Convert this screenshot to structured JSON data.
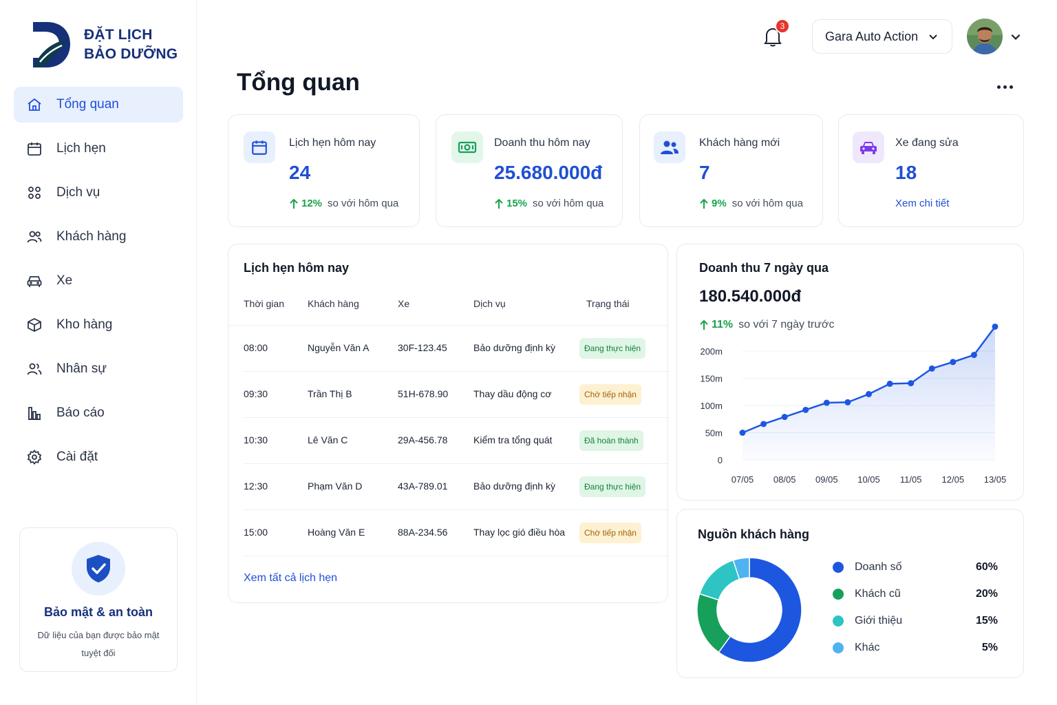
{
  "brand": {
    "line1": "ĐẶT LỊCH",
    "line2": "BẢO DƯỠNG"
  },
  "sidebar": {
    "items": [
      {
        "label": "Tổng quan",
        "icon": "home-icon",
        "active": true
      },
      {
        "label": "Lịch hẹn",
        "icon": "calendar-icon"
      },
      {
        "label": "Dịch vụ",
        "icon": "grid-icon"
      },
      {
        "label": "Khách hàng",
        "icon": "users-icon"
      },
      {
        "label": "Xe",
        "icon": "car-icon"
      },
      {
        "label": "Kho hàng",
        "icon": "box-icon"
      },
      {
        "label": "Nhân sự",
        "icon": "staff-icon"
      },
      {
        "label": "Báo cáo",
        "icon": "chart-icon"
      },
      {
        "label": "Cài đặt",
        "icon": "gear-icon"
      }
    ]
  },
  "security": {
    "title": "Bảo mật & an toàn",
    "desc": "Dữ liệu của bạn được bảo mật tuyệt đối"
  },
  "header": {
    "notifications": "3",
    "garage": "Gara Auto Action"
  },
  "page": {
    "title": "Tổng quan"
  },
  "stats": {
    "appointments": {
      "label": "Lịch hẹn hôm nay",
      "value": "24",
      "pct": "12%",
      "note": "so với hôm qua"
    },
    "revenue": {
      "label": "Doanh thu hôm nay",
      "value": "25.680.000đ",
      "pct": "15%",
      "note": "so với hôm qua"
    },
    "customers": {
      "label": "Khách hàng mới",
      "value": "7",
      "pct": "9%",
      "note": "so với hôm qua"
    },
    "repairing": {
      "label": "Xe đang sửa",
      "value": "18",
      "link": "Xem chi tiết"
    }
  },
  "appointments": {
    "title": "Lịch hẹn hôm nay",
    "columns": [
      "Thời gian",
      "Khách hàng",
      "Xe",
      "Dịch vụ",
      "Trạng thái"
    ],
    "rows": [
      {
        "time": "08:00",
        "customer": "Nguyễn Văn A",
        "car": "30F-123.45",
        "service": "Bảo dưỡng định kỳ",
        "status": "Đang thực hiện"
      },
      {
        "time": "09:30",
        "customer": "Trần Thị B",
        "car": "51H-678.90",
        "service": "Thay dầu động cơ",
        "status": "Chờ tiếp nhận"
      },
      {
        "time": "10:30",
        "customer": "Lê Văn C",
        "car": "29A-456.78",
        "service": "Kiểm tra tổng quát",
        "status": "Đã hoàn thành"
      },
      {
        "time": "12:30",
        "customer": "Phạm Văn D",
        "car": "43A-789.01",
        "service": "Bảo dưỡng định kỳ",
        "status": "Đang thực hiện"
      },
      {
        "time": "15:00",
        "customer": "Hoàng Văn E",
        "car": "88A-234.56",
        "service": "Thay lọc gió điều hòa",
        "status": "Chờ tiếp nhận"
      }
    ],
    "view_all": "Xem tất cả lịch hẹn"
  },
  "revenue7": {
    "title": "Doanh thu 7 ngày qua",
    "total": "180.540.000đ",
    "pct": "11%",
    "note": "so với 7 ngày trước"
  },
  "sources": {
    "title": "Nguồn khách hàng",
    "items": [
      {
        "name": "Doanh số",
        "value": "60%",
        "pct": 60,
        "color": "#1d57e0"
      },
      {
        "name": "Khách cũ",
        "value": "20%",
        "pct": 20,
        "color": "#16a05a"
      },
      {
        "name": "Giới thiệu",
        "value": "15%",
        "pct": 15,
        "color": "#2ec4c4"
      },
      {
        "name": "Khác",
        "value": "5%",
        "pct": 5,
        "color": "#4fb3f0"
      }
    ]
  },
  "chart_data": {
    "type": "line",
    "title": "Doanh thu 7 ngày qua",
    "categories": [
      "07/05",
      "08/05",
      "09/05",
      "10/05",
      "11/05",
      "12/05",
      "13/05"
    ],
    "yticks": [
      "0",
      "50m",
      "100m",
      "150m",
      "200m"
    ],
    "ylim": [
      0,
      200
    ],
    "x": [
      0,
      0.5,
      1,
      1.5,
      2,
      2.5,
      3,
      3.5,
      4,
      4.5,
      5,
      5.5,
      6
    ],
    "values": [
      50,
      66,
      79,
      92,
      105,
      106,
      121,
      140,
      141,
      168,
      180,
      193,
      245
    ],
    "grid": true,
    "color": "#1d57e0"
  },
  "colors": {
    "accent": "#1f4fd6",
    "success": "#16a34a",
    "navy": "#16307a"
  }
}
